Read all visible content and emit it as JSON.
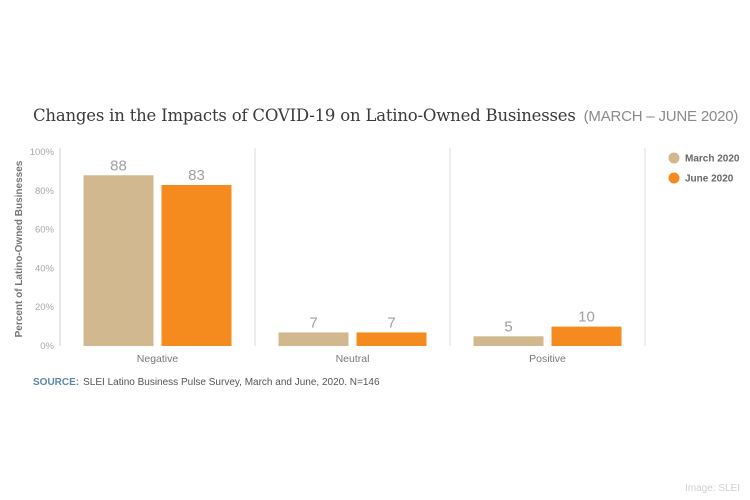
{
  "chart_data": {
    "type": "bar",
    "title": "Changes in the Impacts of COVID-19 on Latino-Owned Businesses",
    "subtitle": "(MARCH – JUNE 2020)",
    "categories": [
      "Negative",
      "Neutral",
      "Positive"
    ],
    "series": [
      {
        "name": "March 2020",
        "color": "#d2b88f",
        "values": [
          88,
          7,
          5
        ]
      },
      {
        "name": "June 2020",
        "color": "#f58a1f",
        "values": [
          83,
          7,
          10
        ]
      }
    ],
    "xlabel": "",
    "ylabel": "Percent of Latino-Owned Businesses",
    "ylim": [
      0,
      100
    ],
    "yticks": [
      "0%",
      "20%",
      "40%",
      "60%",
      "80%",
      "100%"
    ],
    "ytick_values": [
      0,
      20,
      40,
      60,
      80,
      100
    ],
    "grid": false,
    "legend": "top-right",
    "data_labels": true
  },
  "source": {
    "label": "SOURCE:",
    "text": "SLEI Latino Business Pulse Survey, March and June, 2020. N=146"
  },
  "credit": "Image: SLEI"
}
